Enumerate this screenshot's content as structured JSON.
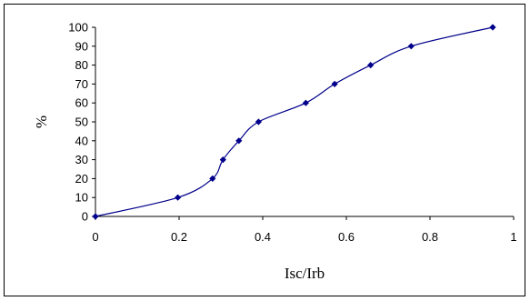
{
  "chart_data": {
    "type": "line",
    "title": "",
    "xlabel": "Isc/Irb",
    "ylabel": "%",
    "xlim": [
      0,
      1
    ],
    "ylim": [
      0,
      100
    ],
    "xticks": [
      "0",
      "0.2",
      "0.4",
      "0.6",
      "0.8",
      "1"
    ],
    "yticks": [
      "0",
      "10",
      "20",
      "30",
      "40",
      "50",
      "60",
      "70",
      "80",
      "90",
      "100"
    ],
    "grid": false,
    "legend": "none",
    "series": [
      {
        "color": "#00008b",
        "x": [
          0,
          0.197,
          0.28,
          0.305,
          0.343,
          0.39,
          0.503,
          0.572,
          0.658,
          0.755,
          0.95
        ],
        "y": [
          0,
          10,
          20,
          30,
          40,
          50,
          60,
          70,
          80,
          90,
          100
        ]
      }
    ]
  }
}
